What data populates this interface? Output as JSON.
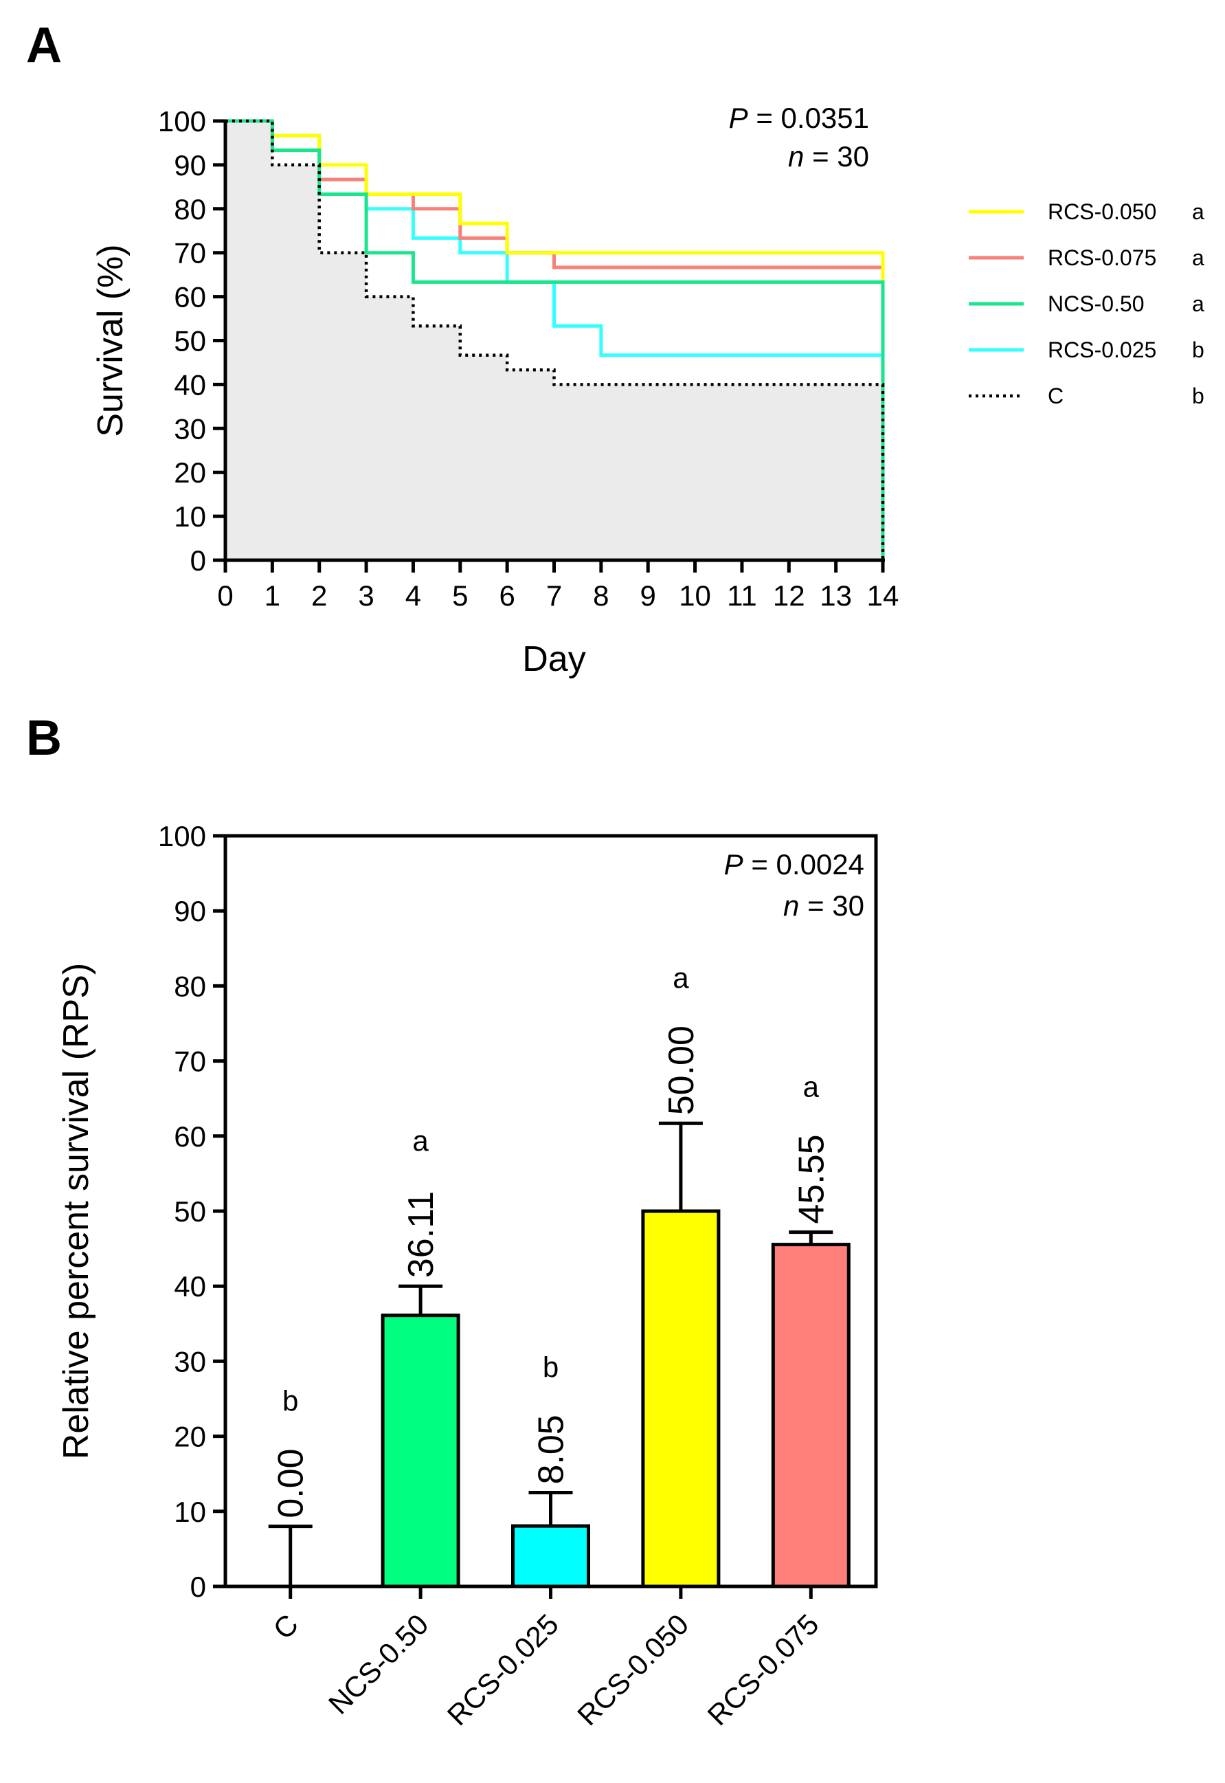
{
  "panels": {
    "a": "A",
    "b": "B"
  },
  "chart_data": [
    {
      "id": "survival",
      "type": "line",
      "subtype": "step",
      "title": "",
      "xlabel": "Day",
      "ylabel": "Survival (%)",
      "xlim": [
        0,
        14
      ],
      "ylim": [
        0,
        100
      ],
      "xticks": [
        0,
        1,
        2,
        3,
        4,
        5,
        6,
        7,
        8,
        9,
        10,
        11,
        12,
        13,
        14
      ],
      "yticks": [
        0,
        10,
        20,
        30,
        40,
        50,
        60,
        70,
        80,
        90,
        100
      ],
      "stats": {
        "p_label": "P",
        "p_value": " = 0.0351",
        "n_label": "n",
        "n_value": " = 30"
      },
      "legend_position": "right",
      "series": [
        {
          "name": "RCS-0.050",
          "group": "a",
          "color": "#ffff00",
          "dash": "solid",
          "steps": [
            [
              0,
              100
            ],
            [
              1,
              96.67
            ],
            [
              2,
              90
            ],
            [
              3,
              83.33
            ],
            [
              4,
              83.33
            ],
            [
              5,
              76.67
            ],
            [
              6,
              70
            ],
            [
              14,
              70
            ]
          ]
        },
        {
          "name": "RCS-0.075",
          "group": "a",
          "color": "#f88078",
          "dash": "solid",
          "steps": [
            [
              0,
              100
            ],
            [
              1,
              93.33
            ],
            [
              2,
              86.67
            ],
            [
              3,
              83.33
            ],
            [
              4,
              80
            ],
            [
              5,
              73.33
            ],
            [
              6,
              70
            ],
            [
              7,
              66.67
            ],
            [
              14,
              66.67
            ]
          ]
        },
        {
          "name": "NCS-0.50",
          "group": "a",
          "color": "#19e68c",
          "dash": "solid",
          "steps": [
            [
              0,
              100
            ],
            [
              1,
              93.33
            ],
            [
              2,
              83.33
            ],
            [
              3,
              70
            ],
            [
              4,
              63.33
            ],
            [
              14,
              63.33
            ]
          ]
        },
        {
          "name": "RCS-0.025",
          "group": "b",
          "color": "#33ffff",
          "dash": "solid",
          "steps": [
            [
              0,
              100
            ],
            [
              1,
              96.67
            ],
            [
              2,
              86.67
            ],
            [
              3,
              80
            ],
            [
              4,
              73.33
            ],
            [
              5,
              70
            ],
            [
              6,
              63.33
            ],
            [
              7,
              53.33
            ],
            [
              8,
              46.67
            ],
            [
              14,
              46.67
            ]
          ]
        },
        {
          "name": "C",
          "group": "b",
          "color": "#000000",
          "dash": "dotted",
          "steps": [
            [
              0,
              100
            ],
            [
              1,
              90
            ],
            [
              2,
              70
            ],
            [
              3,
              60
            ],
            [
              4,
              53.33
            ],
            [
              5,
              46.67
            ],
            [
              6,
              43.33
            ],
            [
              7,
              40
            ],
            [
              14,
              40
            ]
          ]
        }
      ]
    },
    {
      "id": "rps",
      "type": "bar",
      "title": "",
      "xlabel": "",
      "ylabel": "Relative percent survival (RPS)",
      "ylim": [
        0,
        100
      ],
      "yticks": [
        0,
        10,
        20,
        30,
        40,
        50,
        60,
        70,
        80,
        90,
        100
      ],
      "stats": {
        "p_label": "P",
        "p_value": " = 0.0024",
        "n_label": "n",
        "n_value": " = 30"
      },
      "categories": [
        "C",
        "NCS-0.50",
        "RCS-0.025",
        "RCS-0.050",
        "RCS-0.075"
      ],
      "values": [
        0,
        36.11,
        8.05,
        50.0,
        45.55
      ],
      "value_labels": [
        "0.00",
        "36.11",
        "8.05",
        "50.00",
        "45.55"
      ],
      "error_upper": [
        8.0,
        40.0,
        12.5,
        61.7,
        47.2
      ],
      "groups": [
        "b",
        "a",
        "b",
        "a",
        "a"
      ],
      "colors": [
        "#ffffff",
        "#00ff80",
        "#00ffff",
        "#ffff00",
        "#ff7f7a"
      ]
    }
  ]
}
